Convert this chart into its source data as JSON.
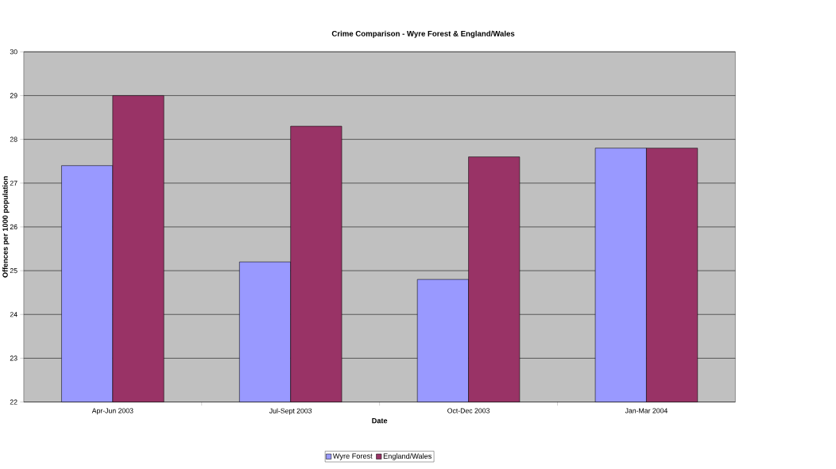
{
  "chart_data": {
    "type": "bar",
    "title": "Crime Comparison - Wyre Forest & England/Wales",
    "xlabel": "Date",
    "ylabel": "Offences per 1000 population",
    "categories": [
      "Apr-Jun 2003",
      "Jul-Sept 2003",
      "Oct-Dec 2003",
      "Jan-Mar 2004"
    ],
    "series": [
      {
        "name": "Wyre Forest",
        "color": "#9999ff",
        "values": [
          27.4,
          25.2,
          24.8,
          27.8
        ]
      },
      {
        "name": "England/Wales",
        "color": "#993366",
        "values": [
          29.0,
          28.3,
          27.6,
          27.8
        ]
      }
    ],
    "ylim": [
      22,
      30
    ],
    "yticks": [
      22,
      23,
      24,
      25,
      26,
      27,
      28,
      29,
      30
    ],
    "grid": "y",
    "legend": "bottom"
  }
}
